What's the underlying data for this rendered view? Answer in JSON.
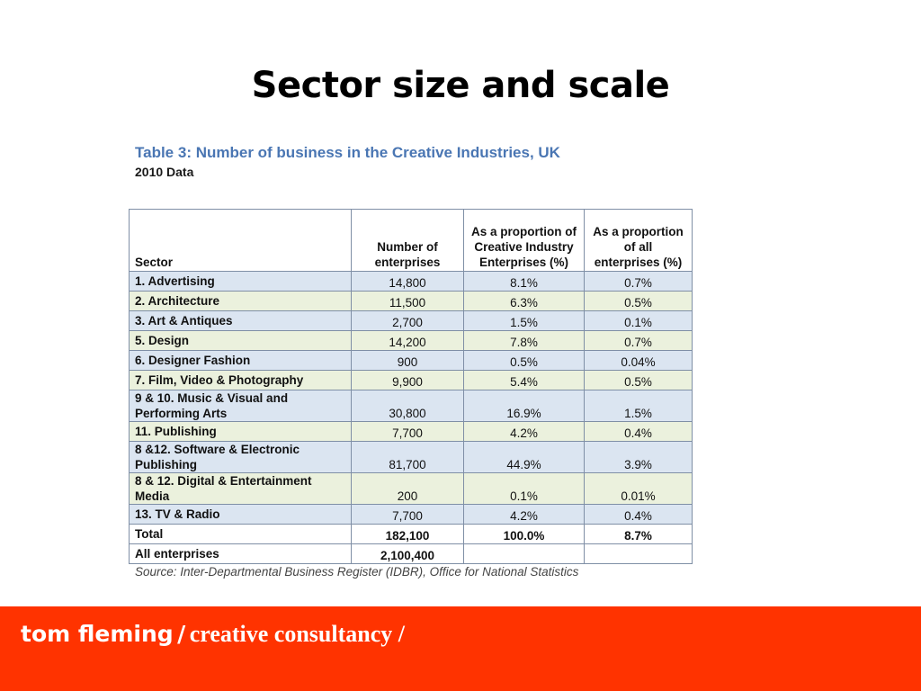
{
  "slide": {
    "title": "Sector size and scale"
  },
  "table": {
    "caption": "Table 3: Number of business in the Creative Industries, UK",
    "subcaption": "2010 Data",
    "headers": {
      "sector": "Sector",
      "enterprises": "Number of enterprises",
      "creative_pct": "As a proportion of Creative Industry Enterprises (%)",
      "all_pct": "As a proportion of all enterprises (%)"
    },
    "rows": [
      {
        "sector": "1. Advertising",
        "enterprises": "14,800",
        "creative_pct": "8.1%",
        "all_pct": "0.7%",
        "shade": "blue"
      },
      {
        "sector": "2. Architecture",
        "enterprises": "11,500",
        "creative_pct": "6.3%",
        "all_pct": "0.5%",
        "shade": "green"
      },
      {
        "sector": "3. Art & Antiques",
        "enterprises": "2,700",
        "creative_pct": "1.5%",
        "all_pct": "0.1%",
        "shade": "blue"
      },
      {
        "sector": "5. Design",
        "enterprises": "14,200",
        "creative_pct": "7.8%",
        "all_pct": "0.7%",
        "shade": "green"
      },
      {
        "sector": "6. Designer Fashion",
        "enterprises": "900",
        "creative_pct": "0.5%",
        "all_pct": "0.04%",
        "shade": "blue"
      },
      {
        "sector": "7. Film, Video & Photography",
        "enterprises": "9,900",
        "creative_pct": "5.4%",
        "all_pct": "0.5%",
        "shade": "green"
      },
      {
        "sector": "9 & 10. Music & Visual and Performing Arts",
        "enterprises": "30,800",
        "creative_pct": "16.9%",
        "all_pct": "1.5%",
        "shade": "blue"
      },
      {
        "sector": "11. Publishing",
        "enterprises": "7,700",
        "creative_pct": "4.2%",
        "all_pct": "0.4%",
        "shade": "green"
      },
      {
        "sector": "8 &12. Software & Electronic Publishing",
        "enterprises": "81,700",
        "creative_pct": "44.9%",
        "all_pct": "3.9%",
        "shade": "blue"
      },
      {
        "sector": "8 & 12. Digital & Entertainment Media",
        "enterprises": "200",
        "creative_pct": "0.1%",
        "all_pct": "0.01%",
        "shade": "green"
      },
      {
        "sector": "13. TV & Radio",
        "enterprises": "7,700",
        "creative_pct": "4.2%",
        "all_pct": "0.4%",
        "shade": "blue"
      },
      {
        "sector": "Total",
        "enterprises": "182,100",
        "creative_pct": "100.0%",
        "all_pct": "8.7%",
        "shade": "white"
      },
      {
        "sector": "All enterprises",
        "enterprises": "2,100,400",
        "creative_pct": "",
        "all_pct": "",
        "shade": "white"
      }
    ],
    "source": "Source: Inter-Departmental Business Register (IDBR), Office for National Statistics"
  },
  "footer": {
    "name": "tom fleming",
    "separator": "/",
    "subtitle": "creative consultancy /",
    "bar_color": "#ff3300"
  }
}
